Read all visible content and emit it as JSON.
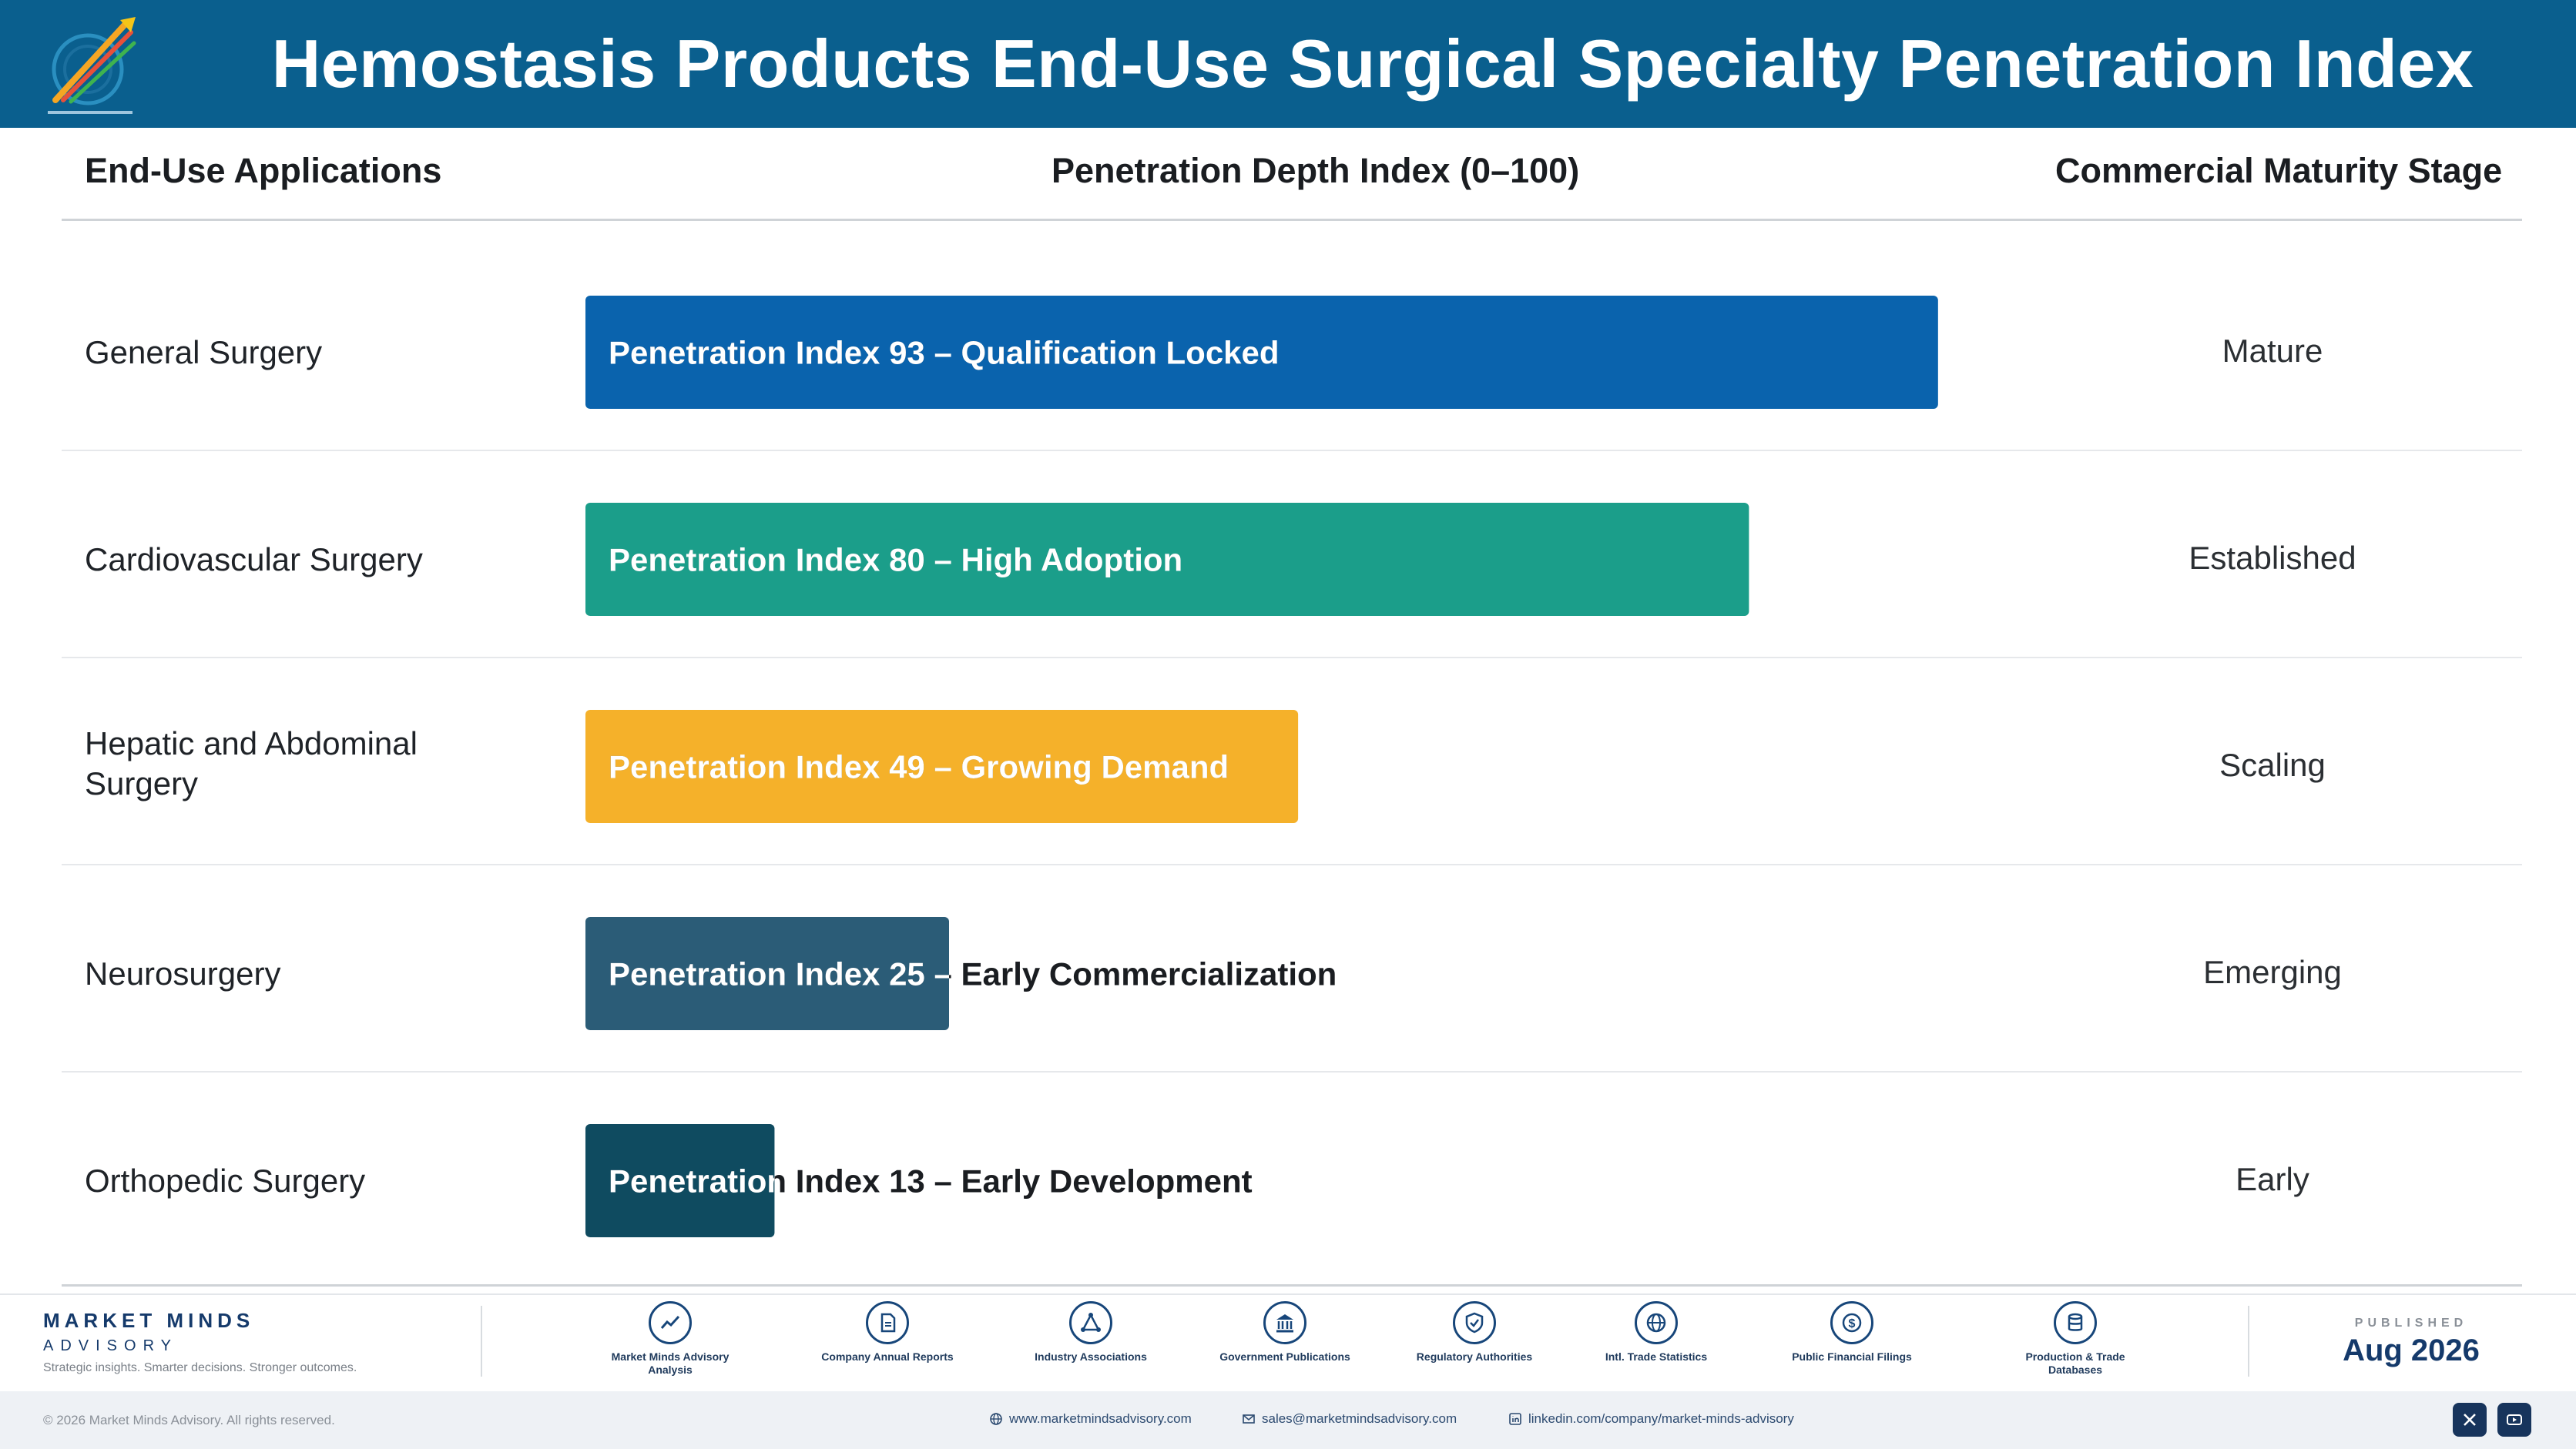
{
  "header": {
    "title": "Hemostasis Products End-Use Surgical Specialty Penetration Index"
  },
  "columns": {
    "applications": "End-Use Applications",
    "index": "Penetration Depth Index (0–100)",
    "stage": "Commercial Maturity Stage"
  },
  "chart_data": {
    "type": "bar",
    "orientation": "horizontal",
    "title": "Hemostasis Products End-Use Surgical Specialty Penetration Index",
    "xlabel": "Penetration Depth Index (0–100)",
    "xlim": [
      0,
      100
    ],
    "grid": false,
    "categories": [
      "General Surgery",
      "Cardiovascular Surgery",
      "Hepatic and Abdominal Surgery",
      "Neurosurgery",
      "Orthopedic Surgery"
    ],
    "values": [
      93,
      80,
      49,
      25,
      13
    ],
    "bar_labels": [
      "Penetration Index 93 – Qualification Locked",
      "Penetration Index 80 – High Adoption",
      "Penetration Index 49 – Growing Demand",
      "Penetration Index 25 – Early Commercialization",
      "Penetration Index 13 – Early Development"
    ],
    "stages": [
      "Mature",
      "Established",
      "Scaling",
      "Emerging",
      "Early"
    ],
    "colors": [
      "#0a63ad",
      "#1b9e8a",
      "#f5b12a",
      "#2b5c77",
      "#0f4b60"
    ]
  },
  "footer": {
    "brand_name": "MARKET MINDS",
    "brand_sub": "ADVISORY",
    "tagline": "Strategic insights. Smarter decisions. Stronger outcomes.",
    "sources": [
      {
        "label": "Market Minds Advisory Analysis",
        "icon": "trend-icon"
      },
      {
        "label": "Company Annual Reports",
        "icon": "document-icon"
      },
      {
        "label": "Industry Associations",
        "icon": "network-icon"
      },
      {
        "label": "Government Publications",
        "icon": "bank-icon"
      },
      {
        "label": "Regulatory Authorities",
        "icon": "shield-icon"
      },
      {
        "label": "Intl. Trade Statistics",
        "icon": "globe-icon"
      },
      {
        "label": "Public Financial Filings",
        "icon": "dollar-icon"
      },
      {
        "label": "Production & Trade Databases",
        "icon": "database-icon"
      }
    ],
    "published_label": "PUBLISHED",
    "published_date": "Aug 2026",
    "copyright": "© 2026 Market Minds Advisory. All rights reserved.",
    "website": "www.marketmindsadvisory.com",
    "email": "sales@marketmindsadvisory.com",
    "linkedin": "linkedin.com/company/market-minds-advisory"
  }
}
